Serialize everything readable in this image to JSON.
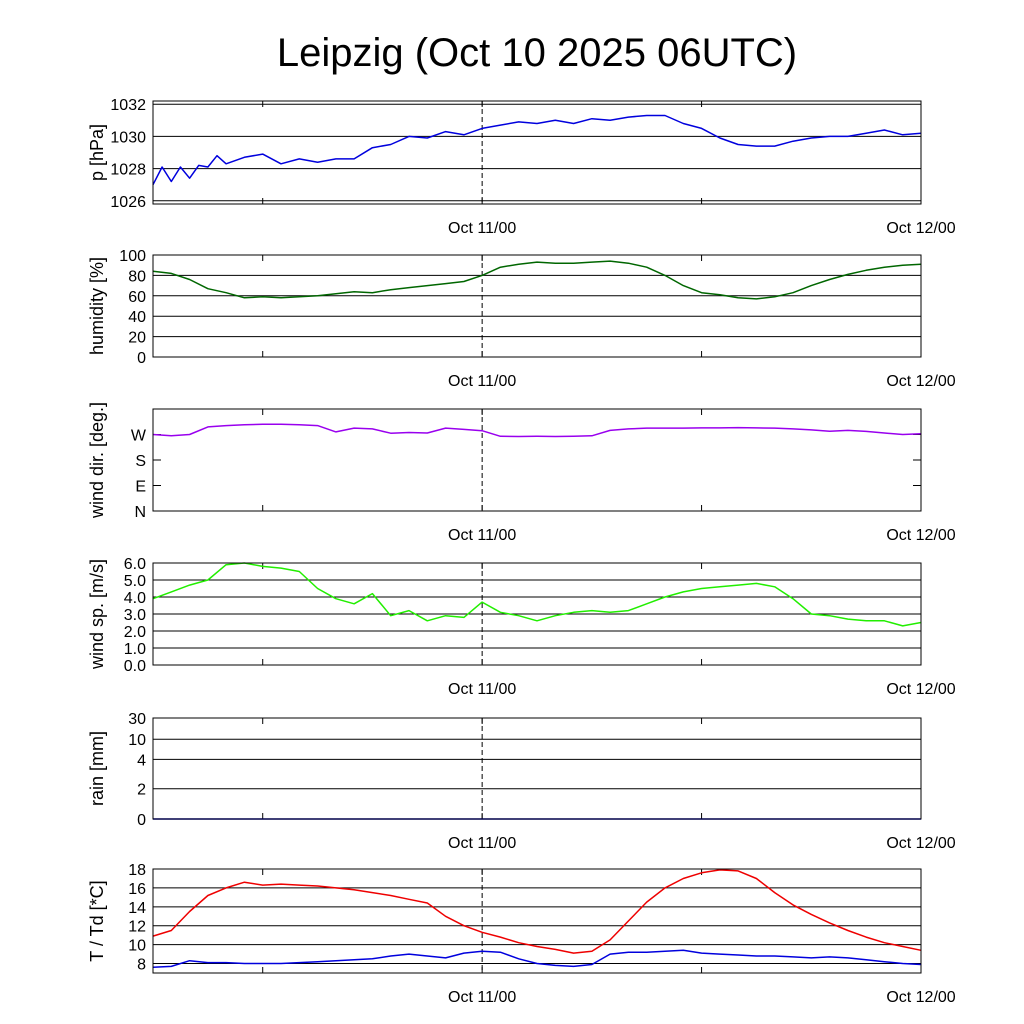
{
  "title": "Leipzig (Oct 10 2025 06UTC)",
  "chart_data": [
    {
      "type": "line",
      "id": "pressure",
      "ylabel": "p [hPa]",
      "ylim": [
        1025.8,
        1032.2
      ],
      "yticks": [
        1026,
        1028,
        1030,
        1032
      ],
      "ytick_labels": [
        "1026",
        "1028",
        "1030",
        "1032"
      ],
      "grid": true,
      "xtick_labels": [
        "Oct 11/00",
        "Oct 12/00"
      ],
      "series": [
        {
          "color": "#0000dd",
          "x": [
            0,
            0.5,
            1,
            1.5,
            2,
            2.5,
            3,
            3.5,
            4,
            5,
            6,
            7,
            8,
            9,
            10,
            11,
            12,
            13,
            14,
            15,
            16,
            17,
            18,
            19,
            20,
            21,
            22,
            23,
            24,
            25,
            26,
            27,
            28,
            29,
            30,
            31,
            32,
            33,
            34,
            35,
            36,
            37,
            38,
            39,
            40,
            41,
            42
          ],
          "y": [
            1027.0,
            1028.1,
            1027.2,
            1028.1,
            1027.4,
            1028.2,
            1028.1,
            1028.8,
            1028.3,
            1028.7,
            1028.9,
            1028.3,
            1028.6,
            1028.4,
            1028.6,
            1028.6,
            1029.3,
            1029.5,
            1030.0,
            1029.9,
            1030.3,
            1030.1,
            1030.5,
            1030.7,
            1030.9,
            1030.8,
            1031.0,
            1030.8,
            1031.1,
            1031.0,
            1031.2,
            1031.3,
            1031.3,
            1030.8,
            1030.5,
            1029.9,
            1029.5,
            1029.4,
            1029.4,
            1029.7,
            1029.9,
            1030.0,
            1030.0,
            1030.2,
            1030.4,
            1030.1,
            1030.2
          ]
        }
      ]
    },
    {
      "type": "line",
      "id": "humidity",
      "ylabel": "humidity [%]",
      "ylim": [
        0,
        100
      ],
      "yticks": [
        0,
        20,
        40,
        60,
        80,
        100
      ],
      "ytick_labels": [
        "0",
        "20",
        "40",
        "60",
        "80",
        "100"
      ],
      "grid": true,
      "xtick_labels": [
        "Oct 11/00",
        "Oct 12/00"
      ],
      "series": [
        {
          "color": "#006600",
          "x": [
            0,
            1,
            2,
            3,
            4,
            5,
            6,
            7,
            8,
            9,
            10,
            11,
            12,
            13,
            14,
            15,
            16,
            17,
            18,
            19,
            20,
            21,
            22,
            23,
            24,
            25,
            26,
            27,
            28,
            29,
            30,
            31,
            32,
            33,
            34,
            35,
            36,
            37,
            38,
            39,
            40,
            41,
            42
          ],
          "y": [
            84,
            82,
            76,
            67,
            63,
            58,
            59,
            58,
            59,
            60,
            62,
            64,
            63,
            66,
            68,
            70,
            72,
            74,
            80,
            88,
            91,
            93,
            92,
            92,
            93,
            94,
            92,
            88,
            80,
            70,
            63,
            61,
            58,
            57,
            59,
            63,
            70,
            76,
            81,
            85,
            88,
            90,
            91
          ]
        }
      ]
    },
    {
      "type": "line",
      "id": "wind_direction",
      "ylabel": "wind dir. [deg.]",
      "ylim": [
        0,
        400
      ],
      "yticks": [
        0,
        100,
        200,
        300
      ],
      "ytick_labels": [
        "N",
        "E",
        "S",
        "W"
      ],
      "grid": false,
      "xtick_labels": [
        "Oct 11/00",
        "Oct 12/00"
      ],
      "series": [
        {
          "color": "#9900ee",
          "x": [
            0,
            1,
            2,
            3,
            4,
            5,
            6,
            7,
            8,
            9,
            10,
            11,
            12,
            13,
            14,
            15,
            16,
            17,
            18,
            19,
            20,
            21,
            22,
            23,
            24,
            25,
            26,
            27,
            28,
            29,
            30,
            31,
            32,
            33,
            34,
            35,
            36,
            37,
            38,
            39,
            40,
            41,
            42
          ],
          "y": [
            300,
            295,
            300,
            330,
            335,
            338,
            340,
            340,
            338,
            335,
            310,
            325,
            322,
            305,
            308,
            306,
            325,
            320,
            315,
            293,
            292,
            293,
            292,
            293,
            295,
            316,
            322,
            325,
            325,
            325,
            326,
            326,
            327,
            326,
            325,
            322,
            318,
            313,
            316,
            312,
            306,
            300,
            303
          ]
        }
      ]
    },
    {
      "type": "line",
      "id": "wind_speed",
      "ylabel": "wind sp. [m/s]",
      "ylim": [
        0,
        6
      ],
      "yticks": [
        0,
        1,
        2,
        3,
        4,
        5,
        6
      ],
      "ytick_labels": [
        "0.0",
        "1.0",
        "2.0",
        "3.0",
        "4.0",
        "5.0",
        "6.0"
      ],
      "grid": true,
      "xtick_labels": [
        "Oct 11/00",
        "Oct 12/00"
      ],
      "series": [
        {
          "color": "#22ee00",
          "x": [
            0,
            1,
            2,
            3,
            4,
            5,
            6,
            7,
            8,
            9,
            10,
            11,
            12,
            13,
            14,
            15,
            16,
            17,
            18,
            19,
            20,
            21,
            22,
            23,
            24,
            25,
            26,
            27,
            28,
            29,
            30,
            31,
            32,
            33,
            34,
            35,
            36,
            37,
            38,
            39,
            40,
            41,
            42
          ],
          "y": [
            3.9,
            4.3,
            4.7,
            5.0,
            5.9,
            6.0,
            5.8,
            5.7,
            5.5,
            4.5,
            3.9,
            3.6,
            4.2,
            2.9,
            3.2,
            2.6,
            2.9,
            2.8,
            3.7,
            3.1,
            2.9,
            2.6,
            2.9,
            3.1,
            3.2,
            3.1,
            3.2,
            3.6,
            4.0,
            4.3,
            4.5,
            4.6,
            4.7,
            4.8,
            4.6,
            3.9,
            3.0,
            2.9,
            2.7,
            2.6,
            2.6,
            2.3,
            2.5
          ]
        }
      ]
    },
    {
      "type": "line",
      "id": "rain",
      "ylabel": "rain [mm]",
      "ylim": [
        0,
        30
      ],
      "yticks": [
        0,
        2,
        4,
        10,
        30
      ],
      "ytick_labels": [
        "0",
        "2",
        "4",
        "10",
        "30"
      ],
      "ytick_positions": [
        0,
        0.3,
        0.59,
        0.79,
        1
      ],
      "grid": true,
      "xtick_labels": [
        "Oct 11/00",
        "Oct 12/00"
      ],
      "series": [
        {
          "color": "#0000dd",
          "x": [
            0,
            42
          ],
          "y": [
            0,
            0
          ]
        }
      ]
    },
    {
      "type": "line",
      "id": "temperature",
      "ylabel": "T / Td [*C]",
      "ylim": [
        7,
        18
      ],
      "yticks": [
        8,
        10,
        12,
        14,
        16,
        18
      ],
      "ytick_labels": [
        "8",
        "10",
        "12",
        "14",
        "16",
        "18"
      ],
      "grid": true,
      "xtick_labels": [
        "Oct 11/00",
        "Oct 12/00"
      ],
      "series": [
        {
          "color": "#ee0000",
          "x": [
            0,
            1,
            2,
            3,
            4,
            5,
            6,
            7,
            8,
            9,
            10,
            11,
            12,
            13,
            14,
            15,
            16,
            17,
            18,
            19,
            20,
            21,
            22,
            23,
            24,
            25,
            26,
            27,
            28,
            29,
            30,
            31,
            32,
            33,
            34,
            35,
            36,
            37,
            38,
            39,
            40,
            41,
            42
          ],
          "y": [
            10.9,
            11.5,
            13.5,
            15.2,
            16.0,
            16.6,
            16.3,
            16.4,
            16.3,
            16.2,
            16.0,
            15.8,
            15.5,
            15.2,
            14.8,
            14.4,
            13.0,
            12.0,
            11.3,
            10.8,
            10.2,
            9.8,
            9.5,
            9.1,
            9.3,
            10.5,
            12.5,
            14.5,
            16.0,
            17.0,
            17.6,
            17.9,
            17.8,
            17.0,
            15.5,
            14.2,
            13.2,
            12.3,
            11.5,
            10.8,
            10.2,
            9.8,
            9.4
          ]
        },
        {
          "color": "#0000dd",
          "x": [
            0,
            1,
            2,
            3,
            4,
            5,
            6,
            7,
            8,
            9,
            10,
            11,
            12,
            13,
            14,
            15,
            16,
            17,
            18,
            19,
            20,
            21,
            22,
            23,
            24,
            25,
            26,
            27,
            28,
            29,
            30,
            31,
            32,
            33,
            34,
            35,
            36,
            37,
            38,
            39,
            40,
            41,
            42
          ],
          "y": [
            7.6,
            7.7,
            8.3,
            8.1,
            8.1,
            8.0,
            8.0,
            8.0,
            8.1,
            8.2,
            8.3,
            8.4,
            8.5,
            8.8,
            9.0,
            8.8,
            8.6,
            9.1,
            9.3,
            9.2,
            8.5,
            8.0,
            7.8,
            7.7,
            7.9,
            9.0,
            9.2,
            9.2,
            9.3,
            9.4,
            9.1,
            9.0,
            8.9,
            8.8,
            8.8,
            8.7,
            8.6,
            8.7,
            8.6,
            8.4,
            8.2,
            8.0,
            7.9
          ]
        }
      ]
    }
  ]
}
